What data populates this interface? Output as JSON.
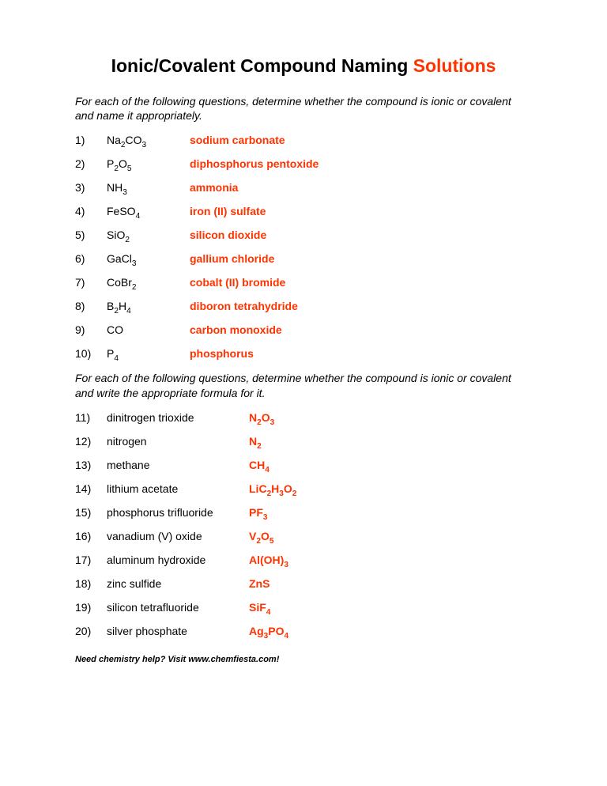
{
  "title_prefix": "Ionic/Covalent Compound Naming ",
  "title_suffix": "Solutions",
  "instructions1": "For each of the following questions, determine whether the compound is ionic or covalent and name it appropriately.",
  "instructions2": "For each of the following questions, determine whether the compound is ionic or covalent and write the appropriate formula for it.",
  "section1": [
    {
      "n": "1)",
      "formula": "Na<sub>2</sub>CO<sub>3</sub>",
      "answer": "sodium carbonate"
    },
    {
      "n": "2)",
      "formula": "P<sub>2</sub>O<sub>5</sub>",
      "answer": "diphosphorus pentoxide"
    },
    {
      "n": "3)",
      "formula": "NH<sub>3</sub>",
      "answer": "ammonia"
    },
    {
      "n": "4)",
      "formula": "FeSO<sub>4</sub>",
      "answer": "iron (II) sulfate"
    },
    {
      "n": "5)",
      "formula": "SiO<sub>2</sub>",
      "answer": "silicon dioxide"
    },
    {
      "n": "6)",
      "formula": "GaCl<sub>3</sub>",
      "answer": "gallium chloride"
    },
    {
      "n": "7)",
      "formula": "CoBr<sub>2</sub>",
      "answer": "cobalt (II) bromide"
    },
    {
      "n": "8)",
      "formula": "B<sub>2</sub>H<sub>4</sub>",
      "answer": "diboron tetrahydride"
    },
    {
      "n": "9)",
      "formula": "CO",
      "answer": "carbon monoxide"
    },
    {
      "n": "10)",
      "formula": "P<sub>4</sub>",
      "answer": "phosphorus"
    }
  ],
  "section2": [
    {
      "n": "11)",
      "name": "dinitrogen trioxide",
      "answer": "N<sub>2</sub>O<sub>3</sub>"
    },
    {
      "n": "12)",
      "name": "nitrogen",
      "answer": "N<sub>2</sub>"
    },
    {
      "n": "13)",
      "name": "methane",
      "answer": "CH<sub>4</sub>"
    },
    {
      "n": "14)",
      "name": "lithium acetate",
      "answer": "LiC<sub>2</sub>H<sub>3</sub>O<sub>2</sub>"
    },
    {
      "n": "15)",
      "name": "phosphorus trifluoride",
      "answer": "PF<sub>3</sub>"
    },
    {
      "n": "16)",
      "name": "vanadium (V) oxide",
      "answer": "V<sub>2</sub>O<sub>5</sub>"
    },
    {
      "n": "17)",
      "name": "aluminum hydroxide",
      "answer": "Al(OH)<sub>3</sub>"
    },
    {
      "n": "18)",
      "name": "zinc sulfide",
      "answer": "ZnS"
    },
    {
      "n": "19)",
      "name": "silicon tetrafluoride",
      "answer": "SiF<sub>4</sub>"
    },
    {
      "n": "20)",
      "name": "silver phosphate",
      "answer": "Ag<sub>3</sub>PO<sub>4</sub>"
    }
  ],
  "footer": "Need chemistry help?  Visit www.chemfiesta.com!",
  "colors": {
    "answer": "#ff3300",
    "text": "#000000",
    "background": "#ffffff"
  },
  "typography": {
    "title_fontsize": 23,
    "body_fontsize": 14,
    "footer_fontsize": 11
  }
}
